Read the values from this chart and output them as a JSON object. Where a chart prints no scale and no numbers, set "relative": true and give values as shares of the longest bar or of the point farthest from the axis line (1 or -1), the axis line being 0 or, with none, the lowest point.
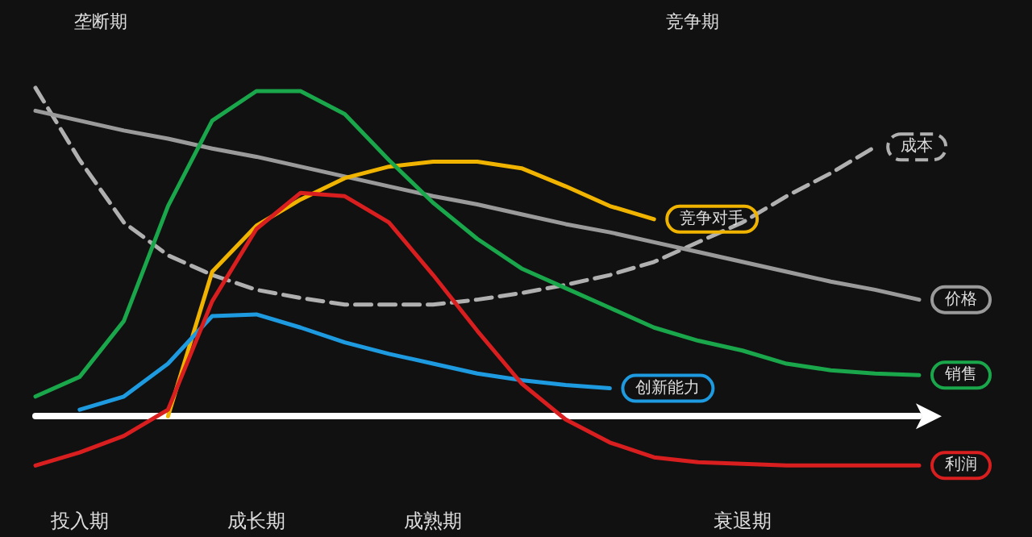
{
  "chart_data": {
    "type": "line",
    "relative": true,
    "legend": false,
    "marker": "none",
    "categories": [
      null,
      "投入期",
      null,
      null,
      null,
      "成长期",
      null,
      null,
      null,
      "成熟期",
      null,
      null,
      null,
      null,
      null,
      null,
      "衰退期",
      null,
      null,
      null,
      null
    ],
    "annotations": [
      "垄断期",
      "竞争期"
    ],
    "series": [
      {
        "name": "成本",
        "color": "#b0b0b0",
        "line_style": "dashed",
        "values": [
          1.0,
          0.78,
          0.59,
          0.49,
          0.43,
          0.385,
          0.36,
          0.34,
          0.34,
          0.34,
          0.355,
          0.375,
          0.4,
          0.43,
          0.47,
          0.53,
          0.59,
          0.67,
          0.74,
          0.82,
          null
        ]
      },
      {
        "name": "价格",
        "color": "#9a9a9a",
        "values": [
          0.93,
          0.9,
          0.87,
          0.845,
          0.815,
          0.79,
          0.76,
          0.73,
          0.7,
          0.67,
          0.645,
          0.615,
          0.585,
          0.56,
          0.53,
          0.5,
          0.47,
          0.44,
          0.41,
          0.385,
          0.355
        ]
      },
      {
        "name": "竞争对手",
        "color": "#f0b400",
        "values": [
          null,
          null,
          null,
          0,
          0.44,
          0.58,
          0.66,
          0.725,
          0.76,
          0.775,
          0.775,
          0.755,
          0.7,
          0.64,
          0.6,
          null,
          null,
          null,
          null,
          null,
          null
        ]
      },
      {
        "name": "销售",
        "color": "#1aa64a",
        "values": [
          0.06,
          0.12,
          0.29,
          0.64,
          0.9,
          0.99,
          0.99,
          0.92,
          0.78,
          0.65,
          0.54,
          0.45,
          0.39,
          0.33,
          0.27,
          0.23,
          0.2,
          0.16,
          0.14,
          0.13,
          0.125
        ]
      },
      {
        "name": "创新能力",
        "color": "#1e9be0",
        "values": [
          null,
          0.02,
          0.06,
          0.16,
          0.305,
          0.31,
          0.27,
          0.225,
          0.19,
          0.16,
          0.13,
          0.11,
          0.095,
          0.085,
          null,
          null,
          null,
          null,
          null,
          null,
          null
        ]
      },
      {
        "name": "利润",
        "color": "#d81e1e",
        "values": [
          -0.15,
          -0.11,
          -0.06,
          0.02,
          0.35,
          0.57,
          0.68,
          0.67,
          0.59,
          0.43,
          0.26,
          0.1,
          -0.01,
          -0.08,
          -0.125,
          -0.14,
          -0.145,
          -0.15,
          -0.15,
          -0.15,
          -0.15
        ]
      }
    ]
  }
}
